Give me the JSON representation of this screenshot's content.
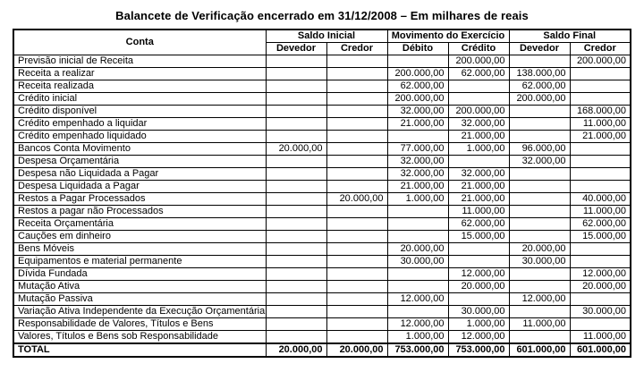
{
  "title": "Balancete de Verificação encerrado em 31/12/2008 – Em milhares de reais",
  "table": {
    "header": {
      "conta": "Conta",
      "groups": [
        {
          "label": "Saldo Inicial",
          "sub1": "Devedor",
          "sub2": "Credor"
        },
        {
          "label": "Movimento do Exercício",
          "sub1": "Débito",
          "sub2": "Crédito"
        },
        {
          "label": "Saldo Final",
          "sub1": "Devedor",
          "sub2": "Credor"
        }
      ]
    },
    "rows": [
      {
        "conta": "Previsão inicial de Receita",
        "values": [
          "",
          "",
          "",
          "200.000,00",
          "",
          "200.000,00"
        ]
      },
      {
        "conta": "Receita a realizar",
        "values": [
          "",
          "",
          "200.000,00",
          "62.000,00",
          "138.000,00",
          ""
        ]
      },
      {
        "conta": "Receita realizada",
        "values": [
          "",
          "",
          "62.000,00",
          "",
          "62.000,00",
          ""
        ]
      },
      {
        "conta": "Crédito inicial",
        "values": [
          "",
          "",
          "200.000,00",
          "",
          "200.000,00",
          ""
        ]
      },
      {
        "conta": "Crédito disponível",
        "values": [
          "",
          "",
          "32.000,00",
          "200.000,00",
          "",
          "168.000,00"
        ]
      },
      {
        "conta": "Crédito empenhado a liquidar",
        "values": [
          "",
          "",
          "21.000,00",
          "32.000,00",
          "",
          "11.000,00"
        ]
      },
      {
        "conta": "Crédito empenhado liquidado",
        "values": [
          "",
          "",
          "",
          "21.000,00",
          "",
          "21.000,00"
        ]
      },
      {
        "conta": "Bancos Conta Movimento",
        "values": [
          "20.000,00",
          "",
          "77.000,00",
          "1.000,00",
          "96.000,00",
          ""
        ]
      },
      {
        "conta": "Despesa Orçamentária",
        "values": [
          "",
          "",
          "32.000,00",
          "",
          "32.000,00",
          ""
        ]
      },
      {
        "conta": "Despesa não Liquidada a Pagar",
        "values": [
          "",
          "",
          "32.000,00",
          "32.000,00",
          "",
          ""
        ]
      },
      {
        "conta": "Despesa Liquidada a Pagar",
        "values": [
          "",
          "",
          "21.000,00",
          "21.000,00",
          "",
          ""
        ]
      },
      {
        "conta": "Restos a Pagar Processados",
        "values": [
          "",
          "20.000,00",
          "1.000,00",
          "21.000,00",
          "",
          "40.000,00"
        ]
      },
      {
        "conta": "Restos a pagar não Processados",
        "values": [
          "",
          "",
          "",
          "11.000,00",
          "",
          "11.000,00"
        ]
      },
      {
        "conta": "Receita Orçamentária",
        "values": [
          "",
          "",
          "",
          "62.000,00",
          "",
          "62.000,00"
        ]
      },
      {
        "conta": "Cauções em dinheiro",
        "values": [
          "",
          "",
          "",
          "15.000,00",
          "",
          "15.000,00"
        ]
      },
      {
        "conta": "Bens Móveis",
        "values": [
          "",
          "",
          "20.000,00",
          "",
          "20.000,00",
          ""
        ]
      },
      {
        "conta": "Equipamentos e material permanente",
        "values": [
          "",
          "",
          "30.000,00",
          "",
          "30.000,00",
          ""
        ]
      },
      {
        "conta": "Dívida Fundada",
        "values": [
          "",
          "",
          "",
          "12.000,00",
          "",
          "12.000,00"
        ]
      },
      {
        "conta": "Mutação Ativa",
        "values": [
          "",
          "",
          "",
          "20.000,00",
          "",
          "20.000,00"
        ]
      },
      {
        "conta": "Mutação Passiva",
        "values": [
          "",
          "",
          "12.000,00",
          "",
          "12.000,00",
          ""
        ]
      },
      {
        "conta": "Variação Ativa Independente da Execução Orçamentária",
        "values": [
          "",
          "",
          "",
          "30.000,00",
          "",
          "30.000,00"
        ]
      },
      {
        "conta": "Responsabilidade de Valores, Títulos e Bens",
        "values": [
          "",
          "",
          "12.000,00",
          "1.000,00",
          "11.000,00",
          ""
        ]
      },
      {
        "conta": "Valores, Títulos e Bens sob Responsabilidade",
        "values": [
          "",
          "",
          "1.000,00",
          "12.000,00",
          "",
          "11.000,00"
        ]
      }
    ],
    "total": {
      "label": "TOTAL",
      "values": [
        "20.000,00",
        "20.000,00",
        "753.000,00",
        "753.000,00",
        "601.000,00",
        "601.000,00"
      ]
    }
  }
}
